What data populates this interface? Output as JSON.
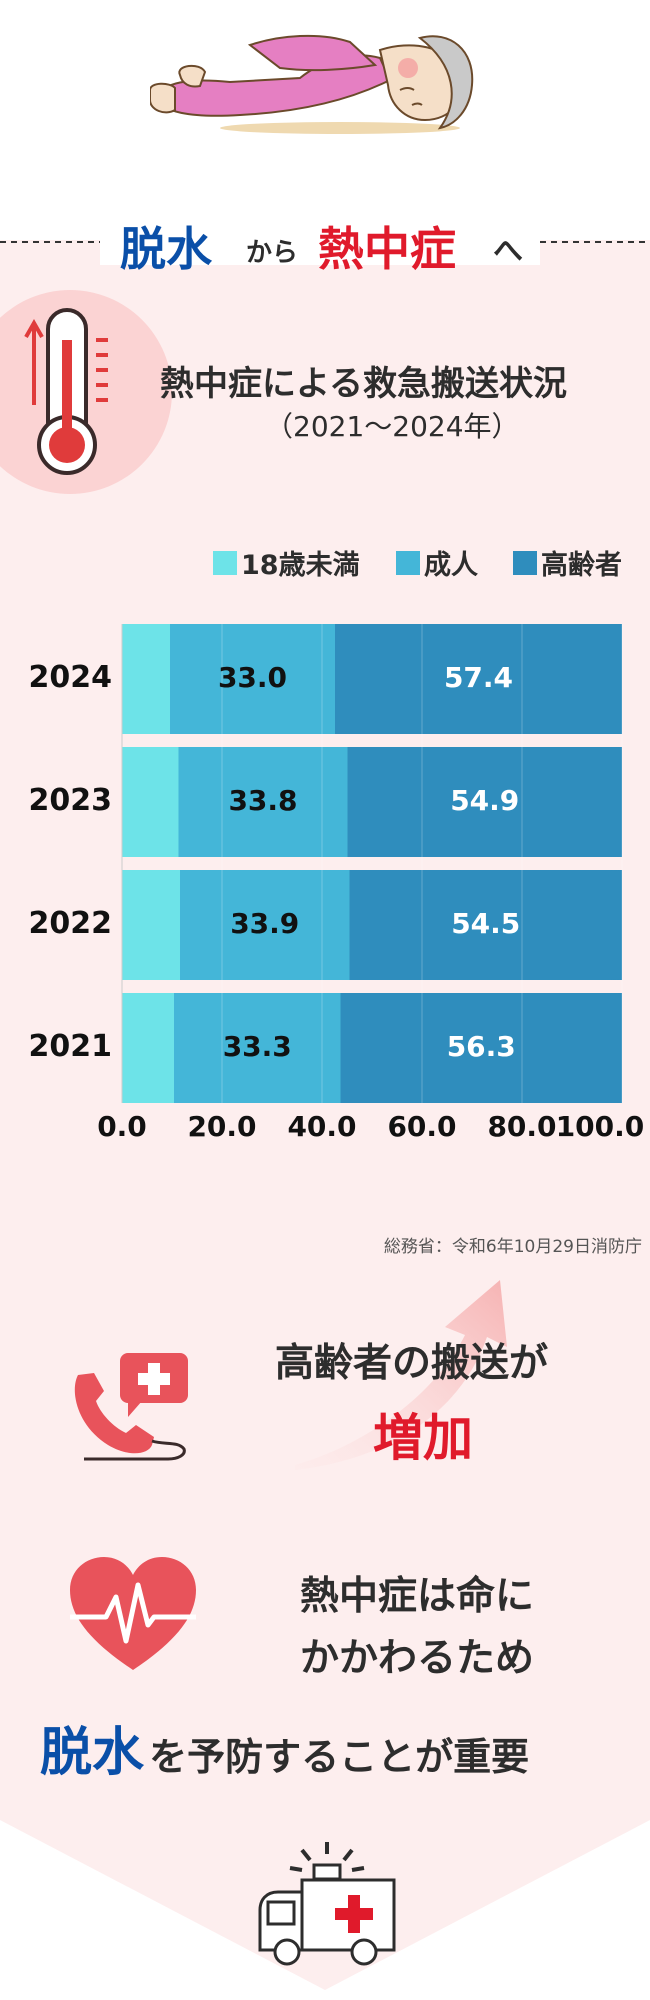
{
  "header": {
    "word1": "脱水",
    "word2": "から",
    "word3": "熱中症",
    "word4": "へ"
  },
  "chart_title": "熱中症による救急搬送状況",
  "chart_subtitle": "（2021〜2024年）",
  "legend": [
    {
      "name": "18歳未満",
      "color": "#6de3e8"
    },
    {
      "name": "成人",
      "color": "#44b6d8"
    },
    {
      "name": "高齢者",
      "color": "#2f8dbd"
    }
  ],
  "chart_data": {
    "type": "bar",
    "orientation": "horizontal",
    "stacked": true,
    "categories": [
      "2024",
      "2023",
      "2022",
      "2021"
    ],
    "series": [
      {
        "name": "18歳未満",
        "values": [
          9.6,
          11.3,
          11.6,
          10.4
        ]
      },
      {
        "name": "成人",
        "values": [
          33.0,
          33.8,
          33.9,
          33.3
        ]
      },
      {
        "name": "高齢者",
        "values": [
          57.4,
          54.9,
          54.5,
          56.3
        ]
      }
    ],
    "data_labels_series": [
      "成人",
      "高齢者"
    ],
    "xlim": [
      0,
      100
    ],
    "xticks": [
      "0.0",
      "20.0",
      "40.0",
      "60.0",
      "80.0",
      "100.0"
    ],
    "grid": "vertical",
    "legend_position": "top-right"
  },
  "source": "総務省：令和6年10月29日消防庁",
  "point1": {
    "line1": "高齢者の搬送が",
    "line2": "増加"
  },
  "point2": {
    "line1": "熱中症は命に",
    "line2": "かかわるため"
  },
  "conclusion": {
    "highlight": "脱水",
    "rest": "を予防することが重要"
  },
  "colors": {
    "blue": "#0a4fa8",
    "red": "#e01a2b",
    "pink_bg": "#fdeeee",
    "text": "#2d2d2d"
  }
}
